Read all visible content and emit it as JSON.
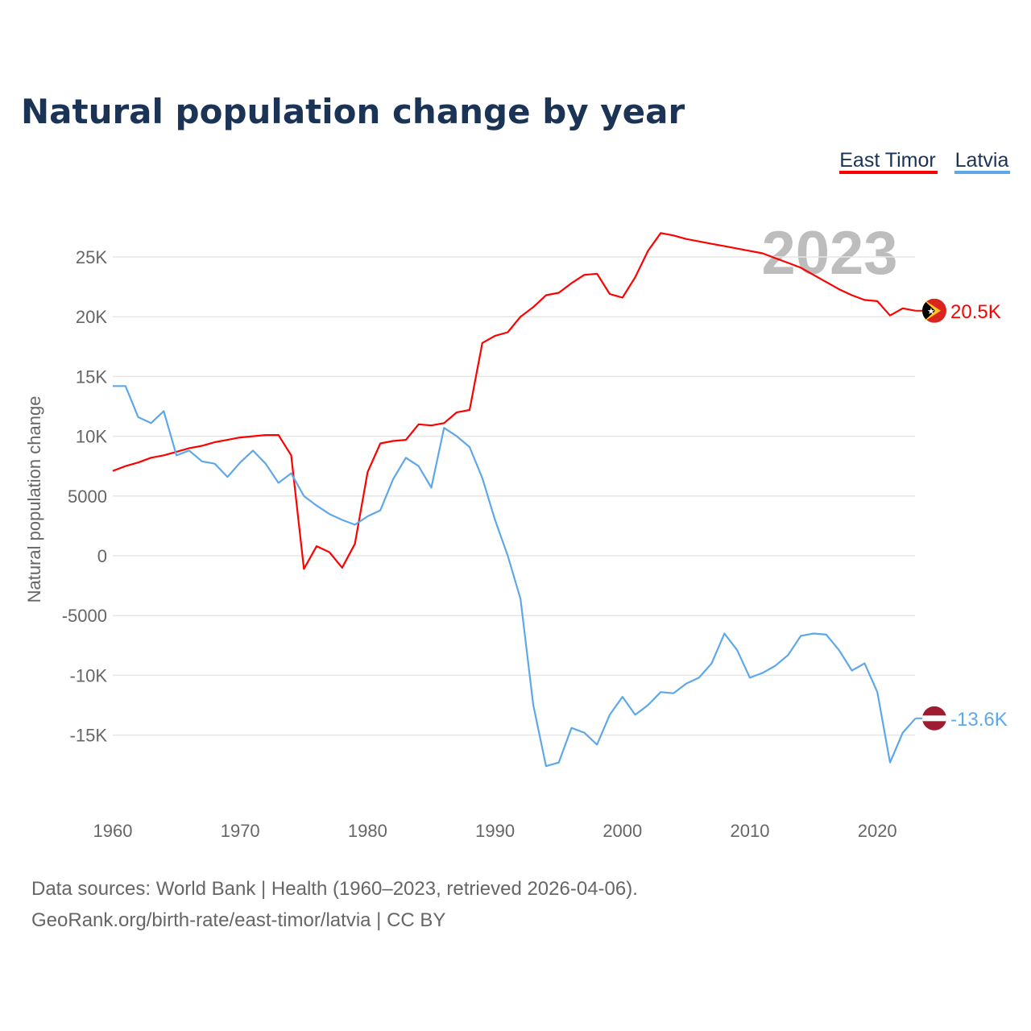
{
  "chart_data": {
    "type": "line",
    "title": "Natural population change by year",
    "xlabel": "",
    "ylabel": "Natural population change",
    "xlim": [
      1960,
      2023
    ],
    "ylim": [
      -20000,
      28000
    ],
    "grid": true,
    "legend_position": "top-right",
    "year_label": "2023",
    "x_ticks": [
      1960,
      1970,
      1980,
      1990,
      2000,
      2010,
      2020
    ],
    "x_tick_labels": [
      "1960",
      "1970",
      "1980",
      "1990",
      "2000",
      "2010",
      "2020"
    ],
    "y_ticks": [
      25000,
      20000,
      15000,
      10000,
      5000,
      0,
      -5000,
      -10000,
      -15000
    ],
    "y_tick_labels": [
      "25K",
      "20K",
      "15K",
      "10K",
      "5000",
      "0",
      "-5000",
      "-10K",
      "-15K"
    ],
    "x": [
      1960,
      1961,
      1962,
      1963,
      1964,
      1965,
      1966,
      1967,
      1968,
      1969,
      1970,
      1971,
      1972,
      1973,
      1974,
      1975,
      1976,
      1977,
      1978,
      1979,
      1980,
      1981,
      1982,
      1983,
      1984,
      1985,
      1986,
      1987,
      1988,
      1989,
      1990,
      1991,
      1992,
      1993,
      1994,
      1995,
      1996,
      1997,
      1998,
      1999,
      2000,
      2001,
      2002,
      2003,
      2004,
      2005,
      2006,
      2007,
      2008,
      2009,
      2010,
      2011,
      2012,
      2013,
      2014,
      2015,
      2016,
      2017,
      2018,
      2019,
      2020,
      2021,
      2022,
      2023
    ],
    "series": [
      {
        "name": "East Timor",
        "color": "#ff0000",
        "end_label": "20.5K",
        "flag": "east-timor",
        "values": [
          7100,
          7500,
          7800,
          8200,
          8400,
          8700,
          9000,
          9200,
          9500,
          9700,
          9900,
          10000,
          10100,
          10100,
          8400,
          -1100,
          800,
          300,
          -1000,
          1000,
          7000,
          9400,
          9600,
          9700,
          11000,
          10900,
          11100,
          12000,
          12200,
          17800,
          18400,
          18700,
          20000,
          20800,
          21800,
          22000,
          22800,
          23500,
          23600,
          21900,
          21600,
          23300,
          25500,
          27000,
          26800,
          26500,
          26300,
          26100,
          25900,
          25700,
          25500,
          25300,
          24900,
          24500,
          24100,
          23500,
          22900,
          22300,
          21800,
          21400,
          21300,
          20100,
          20700,
          20500
        ]
      },
      {
        "name": "Latvia",
        "color": "#5ea8ea",
        "end_label": "-13.6K",
        "flag": "latvia",
        "values": [
          14200,
          14200,
          11600,
          11100,
          12100,
          8400,
          8800,
          7900,
          7700,
          6600,
          7800,
          8800,
          7700,
          6100,
          6900,
          5000,
          4200,
          3500,
          3000,
          2600,
          3300,
          3800,
          6400,
          8200,
          7500,
          5700,
          10700,
          10000,
          9100,
          6500,
          3000,
          0,
          -3600,
          -12500,
          -17600,
          -17300,
          -14400,
          -14800,
          -15800,
          -13300,
          -11800,
          -13300,
          -12500,
          -11400,
          -11500,
          -10700,
          -10200,
          -9000,
          -6500,
          -7900,
          -10200,
          -9800,
          -9200,
          -8300,
          -6700,
          -6500,
          -6600,
          -7900,
          -9600,
          -9000,
          -11400,
          -17300,
          -14800,
          -13600
        ]
      }
    ],
    "source_line1": "Data sources: World Bank | Health (1960–2023, retrieved 2026-04-06).",
    "source_line2": "GeoRank.org/birth-rate/east-timor/latvia | CC BY"
  }
}
